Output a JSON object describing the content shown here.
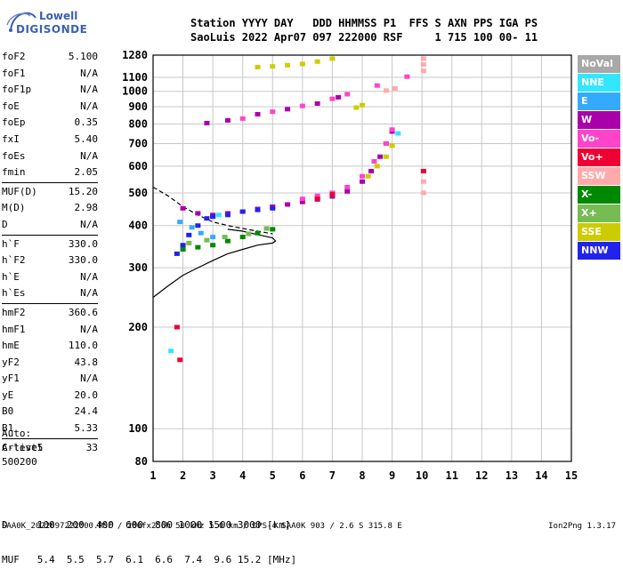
{
  "logo": {
    "line1": "Lowell",
    "line2": "DIGISONDE"
  },
  "header": {
    "line1": "Station YYYY DAY   DDD HHMMSS P1  FFS S AXN PPS IGA PS",
    "line2": "SaoLuis 2022 Apr07 097 222000 RSF     1 715 100 00- 11"
  },
  "params": [
    {
      "k": "foF2",
      "v": "5.100"
    },
    {
      "k": "foF1",
      "v": "N/A"
    },
    {
      "k": "foF1p",
      "v": "N/A"
    },
    {
      "k": "foE",
      "v": "N/A"
    },
    {
      "k": "foEp",
      "v": "0.35"
    },
    {
      "k": "fxI",
      "v": "5.40"
    },
    {
      "k": "foEs",
      "v": "N/A"
    },
    {
      "k": "fmin",
      "v": "2.05"
    },
    {
      "k": "MUF(D)",
      "v": "15.20",
      "div": true
    },
    {
      "k": "M(D)",
      "v": "2.98"
    },
    {
      "k": "D",
      "v": "N/A"
    },
    {
      "k": "h`F",
      "v": "330.0",
      "div": true
    },
    {
      "k": "h`F2",
      "v": "330.0"
    },
    {
      "k": "h`E",
      "v": "N/A"
    },
    {
      "k": "h`Es",
      "v": "N/A"
    },
    {
      "k": "hmF2",
      "v": "360.6",
      "div": true
    },
    {
      "k": "hmF1",
      "v": "N/A"
    },
    {
      "k": "hmE",
      "v": "110.0"
    },
    {
      "k": "yF2",
      "v": "43.8"
    },
    {
      "k": "yF1",
      "v": "N/A"
    },
    {
      "k": "yE",
      "v": "20.0"
    },
    {
      "k": "B0",
      "v": "24.4"
    },
    {
      "k": "B1",
      "v": "5.33"
    },
    {
      "k": "C-level",
      "v": "33",
      "div": true
    }
  ],
  "auto": {
    "l1": "Auto:",
    "l2": "Artist5",
    "l3": "500200"
  },
  "dmuf": {
    "d_line": "D     100  200  400  600  800 1000 1500 3000 [km]",
    "muf_line": "MUF   5.4  5.5  5.7  6.1  6.6  7.4  9.6 15.2 [MHz]"
  },
  "footer": {
    "left": "SAA0K_2022097222000.RSF / 280fx256h 50 kHz 5.0 km / DPS-4 SAA0K 903 / 2.6 S 315.8 E",
    "right": "Ion2Png 1.3.17"
  },
  "legend": [
    {
      "label": "NoVal",
      "color": "#a8a8a8"
    },
    {
      "label": "NNE",
      "color": "#33e6ff"
    },
    {
      "label": "E",
      "color": "#33aaff"
    },
    {
      "label": "W",
      "color": "#aa00aa"
    },
    {
      "label": "Vo-",
      "color": "#ff44cc"
    },
    {
      "label": "Vo+",
      "color": "#ee0033"
    },
    {
      "label": "SSW",
      "color": "#ffaaaa"
    },
    {
      "label": "X-",
      "color": "#008800"
    },
    {
      "label": "X+",
      "color": "#77bb55"
    },
    {
      "label": "SSE",
      "color": "#cccc00"
    },
    {
      "label": "NNW",
      "color": "#2222ee"
    }
  ],
  "chart_data": {
    "type": "scatter",
    "title": "",
    "xlabel": "",
    "ylabel": "",
    "xlim": [
      1,
      15
    ],
    "ylim": [
      80,
      1280
    ],
    "yscale": "log",
    "x_ticks": [
      "1",
      "2",
      "3",
      "4",
      "5",
      "6",
      "7",
      "8",
      "9",
      "10",
      "11",
      "12",
      "13",
      "14",
      "15"
    ],
    "y_ticks": [
      80,
      100,
      200,
      300,
      400,
      500,
      600,
      700,
      800,
      900,
      1000,
      1100,
      1280
    ],
    "grid": true,
    "legend_position": "right",
    "series": [
      {
        "name": "W",
        "color": "#aa00aa",
        "points": [
          [
            2.0,
            450
          ],
          [
            2.5,
            435
          ],
          [
            3.0,
            430
          ],
          [
            3.5,
            435
          ],
          [
            4.0,
            440
          ],
          [
            4.5,
            448
          ],
          [
            5.0,
            455
          ],
          [
            5.5,
            462
          ],
          [
            6.0,
            470
          ],
          [
            6.5,
            478
          ],
          [
            7.0,
            488
          ],
          [
            7.5,
            505
          ],
          [
            8.0,
            540
          ],
          [
            8.3,
            580
          ],
          [
            8.6,
            640
          ],
          [
            8.8,
            700
          ],
          [
            9.0,
            760
          ],
          [
            2.8,
            805
          ],
          [
            3.5,
            820
          ],
          [
            4.5,
            855
          ],
          [
            5.5,
            885
          ],
          [
            6.5,
            920
          ],
          [
            7.2,
            960
          ]
        ]
      },
      {
        "name": "Vo-",
        "color": "#ff44cc",
        "points": [
          [
            6.0,
            480
          ],
          [
            6.5,
            490
          ],
          [
            7.0,
            500
          ],
          [
            7.5,
            520
          ],
          [
            8.0,
            560
          ],
          [
            8.4,
            620
          ],
          [
            8.8,
            700
          ],
          [
            9.0,
            770
          ],
          [
            4.0,
            830
          ],
          [
            5.0,
            870
          ],
          [
            6.0,
            905
          ],
          [
            7.0,
            950
          ],
          [
            7.5,
            980
          ],
          [
            8.5,
            1040
          ],
          [
            9.5,
            1105
          ]
        ]
      },
      {
        "name": "NNW",
        "color": "#2222ee",
        "points": [
          [
            1.8,
            330
          ],
          [
            2.0,
            350
          ],
          [
            2.2,
            375
          ],
          [
            2.5,
            400
          ],
          [
            2.8,
            420
          ],
          [
            3.0,
            425
          ],
          [
            3.5,
            430
          ],
          [
            4.0,
            440
          ],
          [
            4.5,
            445
          ],
          [
            5.0,
            450
          ]
        ]
      },
      {
        "name": "X-",
        "color": "#008800",
        "points": [
          [
            2.0,
            340
          ],
          [
            2.5,
            345
          ],
          [
            3.0,
            350
          ],
          [
            3.5,
            360
          ],
          [
            4.0,
            370
          ],
          [
            4.5,
            380
          ],
          [
            5.0,
            390
          ]
        ]
      },
      {
        "name": "X+",
        "color": "#77bb55",
        "points": [
          [
            2.2,
            355
          ],
          [
            2.8,
            362
          ],
          [
            3.4,
            370
          ],
          [
            4.2,
            378
          ],
          [
            4.8,
            392
          ]
        ]
      },
      {
        "name": "SSE",
        "color": "#cccc00",
        "points": [
          [
            8.2,
            560
          ],
          [
            8.5,
            600
          ],
          [
            8.8,
            640
          ],
          [
            9.0,
            690
          ],
          [
            4.5,
            1180
          ],
          [
            5.0,
            1185
          ],
          [
            5.5,
            1195
          ],
          [
            6.0,
            1205
          ],
          [
            6.5,
            1225
          ],
          [
            7.0,
            1250
          ],
          [
            7.8,
            895
          ],
          [
            8.0,
            910
          ]
        ]
      },
      {
        "name": "SSW",
        "color": "#ffaaaa",
        "points": [
          [
            10.05,
            500
          ],
          [
            10.05,
            540
          ],
          [
            10.05,
            580
          ],
          [
            10.05,
            1150
          ],
          [
            10.05,
            1200
          ],
          [
            10.05,
            1250
          ],
          [
            8.8,
            1005
          ],
          [
            9.1,
            1020
          ]
        ]
      },
      {
        "name": "NNE",
        "color": "#33e6ff",
        "points": [
          [
            9.2,
            750
          ],
          [
            1.6,
            170
          ],
          [
            3.2,
            430
          ]
        ]
      },
      {
        "name": "E",
        "color": "#33aaff",
        "points": [
          [
            1.9,
            410
          ],
          [
            2.3,
            395
          ],
          [
            2.6,
            380
          ],
          [
            3.0,
            370
          ]
        ]
      },
      {
        "name": "Vo+",
        "color": "#ee0033",
        "points": [
          [
            6.5,
            480
          ],
          [
            7.0,
            495
          ],
          [
            1.8,
            200
          ],
          [
            1.9,
            160
          ],
          [
            10.05,
            580
          ]
        ]
      }
    ],
    "profile_solid": [
      [
        1.0,
        245
      ],
      [
        1.5,
        265
      ],
      [
        2.0,
        285
      ],
      [
        2.5,
        300
      ],
      [
        3.0,
        315
      ],
      [
        3.5,
        330
      ],
      [
        4.0,
        340
      ],
      [
        4.5,
        350
      ],
      [
        5.0,
        355
      ],
      [
        5.1,
        360
      ],
      [
        5.0,
        368
      ],
      [
        4.5,
        376
      ],
      [
        4.0,
        385
      ],
      [
        3.5,
        390
      ]
    ],
    "profile_dashed": [
      [
        1.0,
        520
      ],
      [
        1.5,
        490
      ],
      [
        2.0,
        455
      ],
      [
        2.5,
        430
      ],
      [
        3.0,
        410
      ],
      [
        3.5,
        400
      ],
      [
        4.0,
        392
      ],
      [
        4.5,
        385
      ],
      [
        5.0,
        378
      ]
    ]
  }
}
